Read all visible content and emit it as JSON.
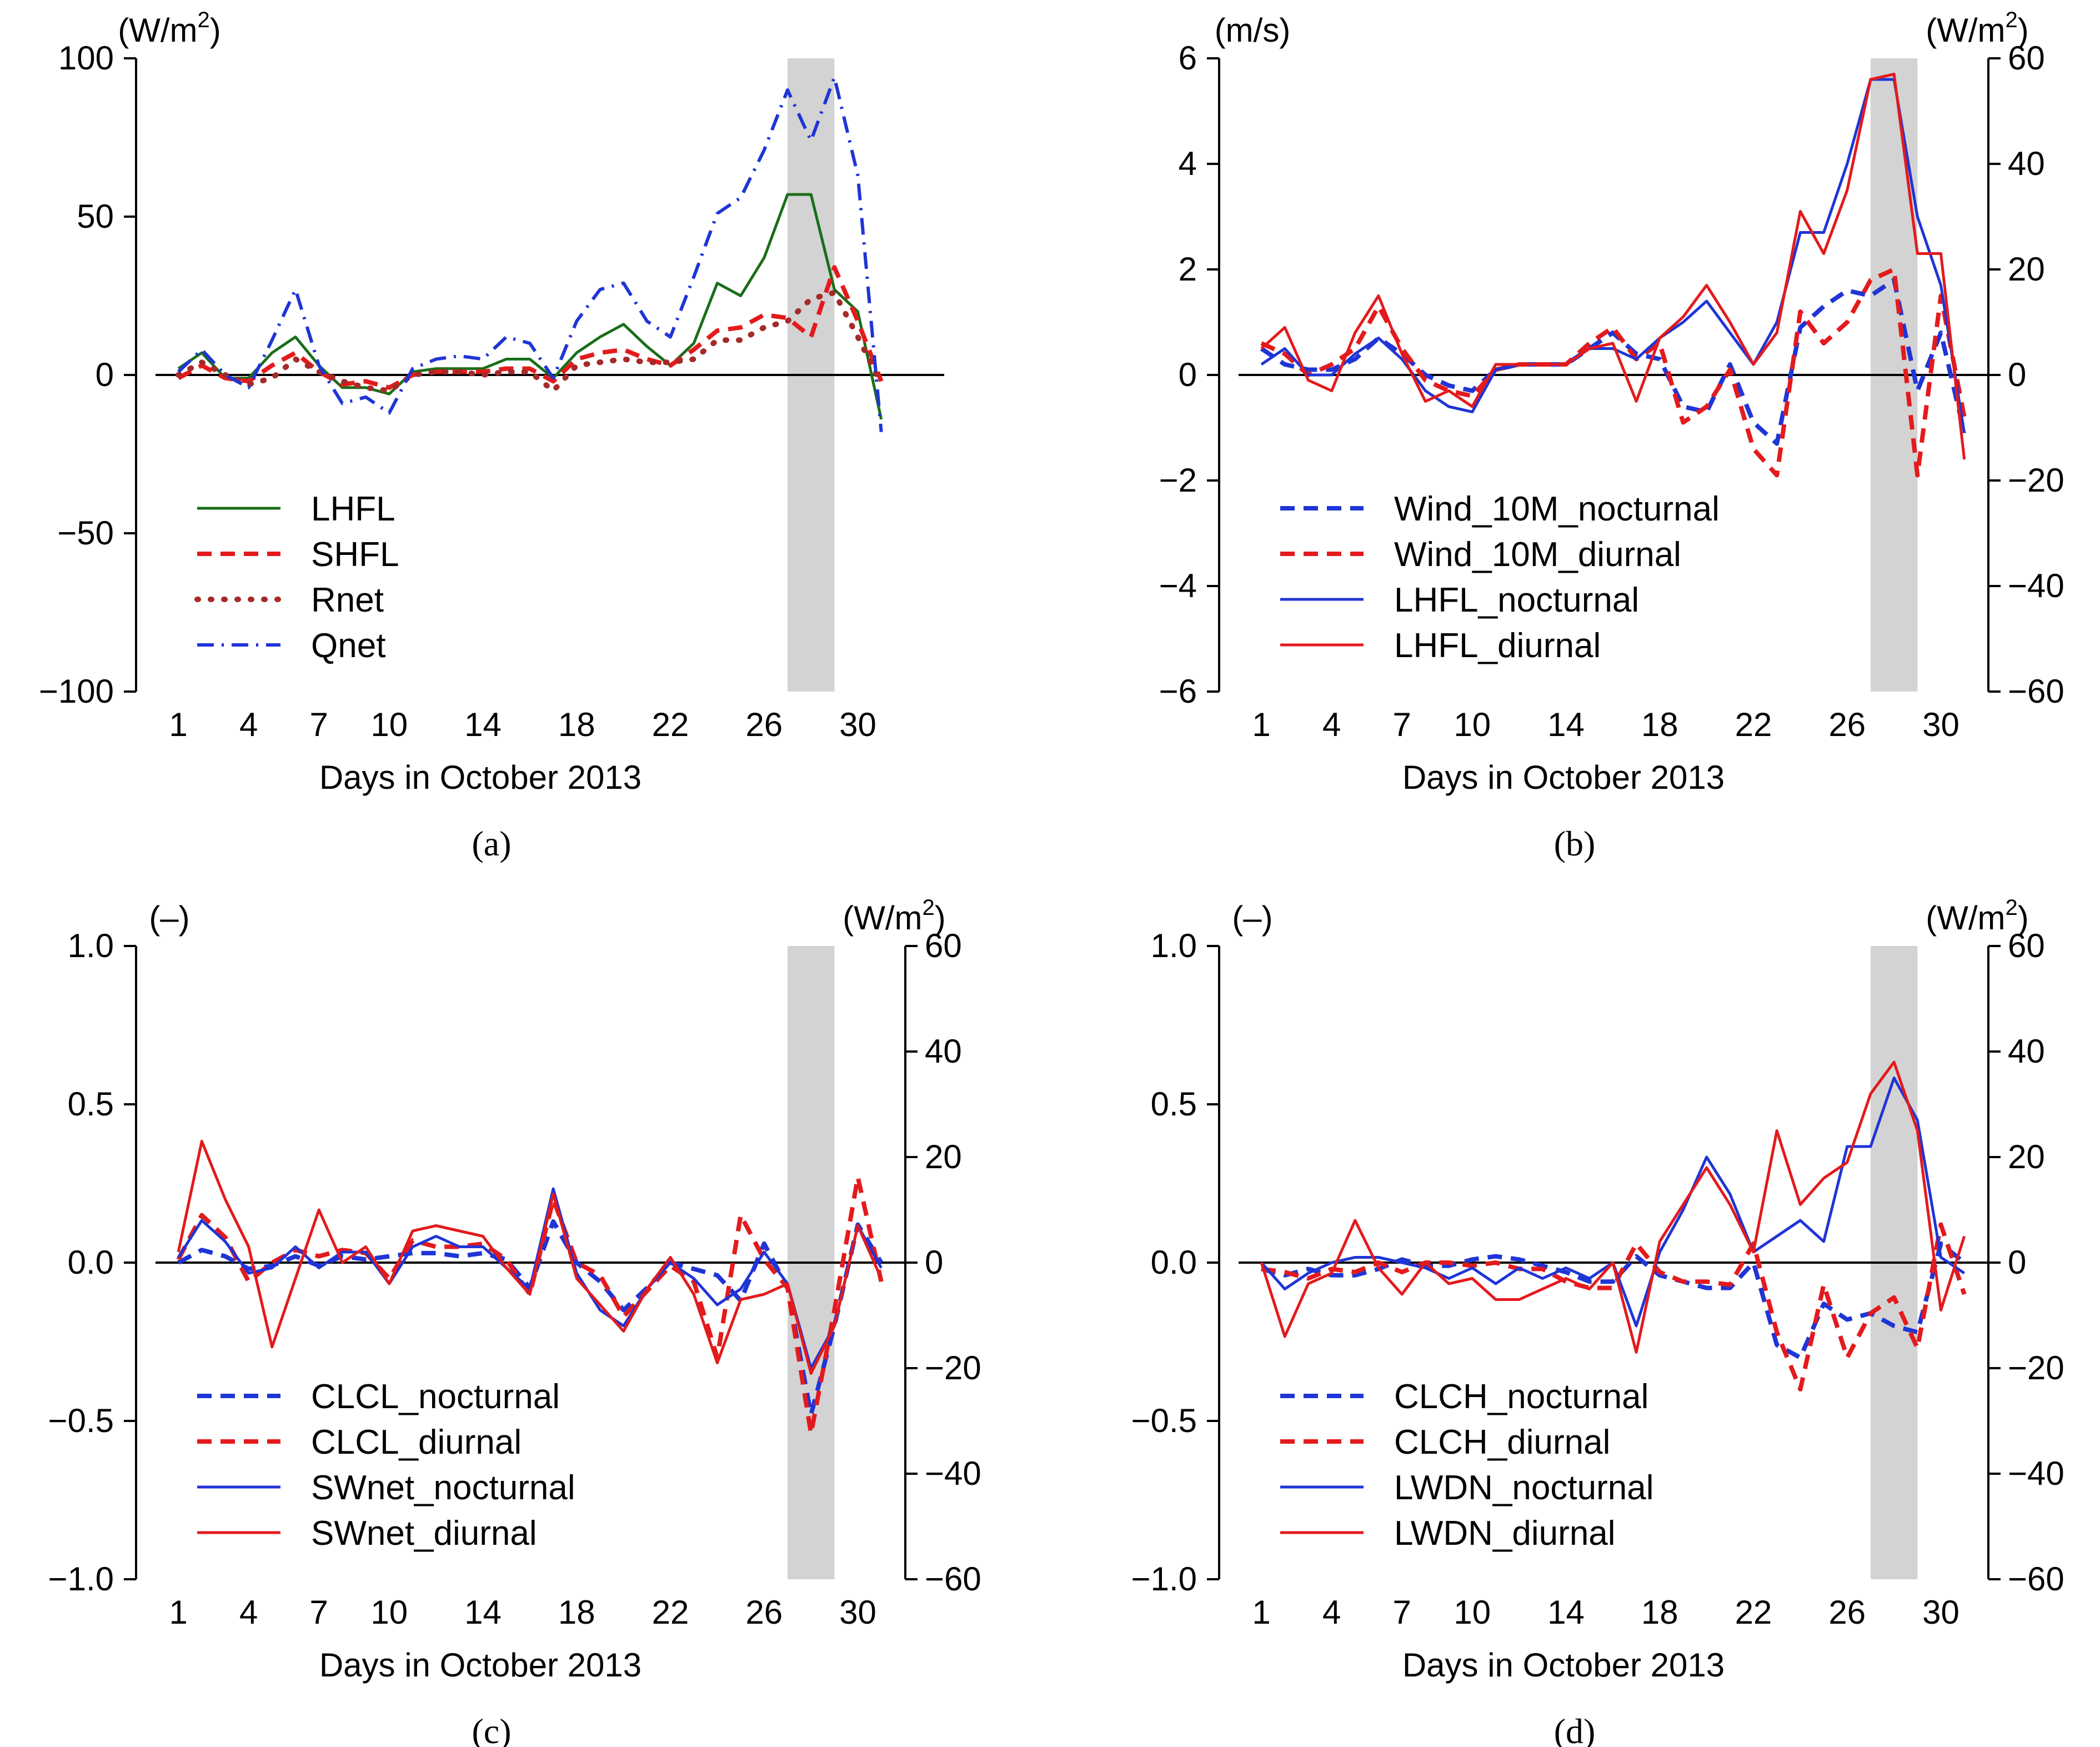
{
  "figure": {
    "xlabel": "Days in October 2013",
    "x_ticks": [
      1,
      4,
      7,
      10,
      14,
      18,
      22,
      26,
      30
    ],
    "shade_days": [
      27,
      29
    ]
  },
  "chart_data": [
    {
      "panel": "(a)",
      "type": "line",
      "title": "",
      "xlabel": "Days in October 2013",
      "xlim": [
        1,
        31
      ],
      "x": [
        1,
        2,
        3,
        4,
        5,
        6,
        7,
        8,
        9,
        10,
        11,
        12,
        13,
        14,
        15,
        16,
        17,
        18,
        19,
        20,
        21,
        22,
        23,
        24,
        25,
        26,
        27,
        28,
        29,
        30,
        31
      ],
      "ylabel": "(W/m2)",
      "ylim": [
        -100,
        100
      ],
      "y_ticks": [
        -100,
        -50,
        0,
        50,
        100
      ],
      "y_tick_labels": [
        "−100",
        "−50",
        "0",
        "50",
        "100"
      ],
      "series": [
        {
          "name": "LHFL",
          "axis": "left",
          "color": "#1a6e1a",
          "style": "solid",
          "values": [
            2,
            7,
            -1,
            -1,
            7,
            12,
            3,
            -4,
            -4,
            -6,
            1,
            2,
            2,
            2,
            5,
            5,
            -1,
            7,
            12,
            16,
            9,
            3,
            10,
            29,
            25,
            37,
            57,
            57,
            27,
            20,
            -14
          ]
        },
        {
          "name": "SHFL",
          "axis": "left",
          "color": "#e41a1c",
          "style": "dashed",
          "values": [
            -1,
            3,
            -1,
            -2,
            3,
            7,
            1,
            -3,
            -2,
            -4,
            0,
            1,
            1,
            1,
            2,
            2,
            -2,
            5,
            7,
            8,
            5,
            3,
            8,
            14,
            15,
            19,
            18,
            12,
            34,
            17,
            -2
          ]
        },
        {
          "name": "Rnet",
          "axis": "left",
          "color": "#a52a2a",
          "style": "dotted",
          "values": [
            0,
            4,
            0,
            -3,
            -1,
            5,
            1,
            -2,
            -4,
            -5,
            0,
            1,
            1,
            0,
            1,
            1,
            -5,
            3,
            4,
            5,
            4,
            4,
            5,
            11,
            11,
            15,
            17,
            24,
            26,
            12,
            -3
          ]
        },
        {
          "name": "Qnet",
          "axis": "left",
          "color": "#1f35d6",
          "style": "dashdot",
          "values": [
            1,
            8,
            0,
            -4,
            11,
            27,
            3,
            -9,
            -7,
            -12,
            2,
            5,
            6,
            5,
            12,
            10,
            -1,
            17,
            27,
            29,
            17,
            12,
            31,
            51,
            56,
            71,
            90,
            74,
            94,
            63,
            -18
          ]
        }
      ]
    },
    {
      "panel": "(b)",
      "type": "line",
      "title": "",
      "xlabel": "Days in October 2013",
      "xlim": [
        1,
        31
      ],
      "x": [
        1,
        2,
        3,
        4,
        5,
        6,
        7,
        8,
        9,
        10,
        11,
        12,
        13,
        14,
        15,
        16,
        17,
        18,
        19,
        20,
        21,
        22,
        23,
        24,
        25,
        26,
        27,
        28,
        29,
        30,
        31
      ],
      "ylabel": "(m/s)",
      "ylim": [
        -6,
        6
      ],
      "y_ticks": [
        -6,
        -4,
        -2,
        0,
        2,
        4,
        6
      ],
      "y_tick_labels": [
        "−6",
        "−4",
        "−2",
        "0",
        "2",
        "4",
        "6"
      ],
      "y2label": "(W/m2)",
      "y2lim": [
        -60,
        60
      ],
      "y2_ticks": [
        -60,
        -40,
        -20,
        0,
        20,
        40,
        60
      ],
      "y2_tick_labels": [
        "−60",
        "−40",
        "−20",
        "0",
        "20",
        "40",
        "60"
      ],
      "series": [
        {
          "name": "Wind_10M_nocturnal",
          "axis": "left",
          "color": "#1f35d6",
          "style": "dashed",
          "values": [
            0.5,
            0.2,
            0.1,
            0.1,
            0.3,
            0.7,
            0.4,
            0.0,
            -0.2,
            -0.3,
            0.1,
            0.2,
            0.2,
            0.2,
            0.5,
            0.8,
            0.4,
            0.3,
            -0.6,
            -0.7,
            0.2,
            -0.9,
            -1.3,
            0.9,
            1.3,
            1.6,
            1.5,
            1.8,
            -0.3,
            0.8,
            -1.1
          ]
        },
        {
          "name": "Wind_10M_diurnal",
          "axis": "left",
          "color": "#e41a1c",
          "style": "dashed",
          "values": [
            0.6,
            0.4,
            0.0,
            0.2,
            0.5,
            1.3,
            0.5,
            -0.1,
            -0.3,
            -0.4,
            0.1,
            0.2,
            0.2,
            0.2,
            0.6,
            0.9,
            0.3,
            0.6,
            -0.9,
            -0.6,
            0.1,
            -1.4,
            -1.9,
            1.2,
            0.6,
            1.0,
            1.8,
            2.0,
            -1.9,
            1.5,
            -0.8
          ]
        },
        {
          "name": "LHFL_nocturnal",
          "axis": "right",
          "color": "#1f35d6",
          "style": "solid",
          "values": [
            2,
            5,
            0,
            0,
            4,
            7,
            3,
            -3,
            -6,
            -7,
            1,
            2,
            2,
            2,
            5,
            5,
            3,
            7,
            10,
            14,
            8,
            2,
            10,
            27,
            27,
            40,
            56,
            56,
            30,
            17,
            -11
          ]
        },
        {
          "name": "LHFL_diurnal",
          "axis": "right",
          "color": "#e41a1c",
          "style": "solid",
          "values": [
            5,
            9,
            -1,
            -3,
            8,
            15,
            4,
            -5,
            -3,
            -6,
            2,
            2,
            2,
            2,
            5,
            6,
            -5,
            7,
            11,
            17,
            10,
            2,
            8,
            31,
            23,
            35,
            56,
            57,
            23,
            23,
            -16
          ]
        }
      ]
    },
    {
      "panel": "(c)",
      "type": "line",
      "title": "",
      "xlabel": "Days in October 2013",
      "xlim": [
        1,
        31
      ],
      "x": [
        1,
        2,
        3,
        4,
        5,
        6,
        7,
        8,
        9,
        10,
        11,
        12,
        13,
        14,
        15,
        16,
        17,
        18,
        19,
        20,
        21,
        22,
        23,
        24,
        25,
        26,
        27,
        28,
        29,
        30,
        31
      ],
      "ylabel": "(–)",
      "ylim": [
        -1.0,
        1.0
      ],
      "y_ticks": [
        -1.0,
        -0.5,
        0.0,
        0.5,
        1.0
      ],
      "y_tick_labels": [
        "−1.0",
        "−0.5",
        "0.0",
        "0.5",
        "1.0"
      ],
      "y2label": "(W/m2)",
      "y2lim": [
        -60,
        60
      ],
      "y2_ticks": [
        -60,
        -40,
        -20,
        0,
        20,
        40,
        60
      ],
      "y2_tick_labels": [
        "−60",
        "−40",
        "−20",
        "0",
        "20",
        "40",
        "60"
      ],
      "series": [
        {
          "name": "CLCL_nocturnal",
          "axis": "left",
          "color": "#1f35d6",
          "style": "dashed",
          "values": [
            0.0,
            0.04,
            0.02,
            -0.02,
            -0.01,
            0.02,
            -0.01,
            0.02,
            0.01,
            0.02,
            0.03,
            0.03,
            0.02,
            0.03,
            0.01,
            -0.08,
            0.13,
            0.0,
            -0.06,
            -0.15,
            -0.08,
            0.0,
            -0.02,
            -0.04,
            -0.12,
            0.06,
            -0.08,
            -0.48,
            -0.2,
            0.12,
            0.0
          ]
        },
        {
          "name": "CLCL_diurnal",
          "axis": "left",
          "color": "#e41a1c",
          "style": "dashed",
          "values": [
            0.01,
            0.15,
            0.08,
            -0.06,
            0.0,
            0.04,
            0.02,
            0.04,
            0.03,
            -0.05,
            0.07,
            0.05,
            0.05,
            0.06,
            0.01,
            -0.1,
            0.2,
            0.0,
            -0.04,
            -0.17,
            -0.09,
            -0.01,
            -0.06,
            -0.3,
            0.15,
            0.01,
            -0.08,
            -0.54,
            -0.15,
            0.27,
            -0.06
          ]
        },
        {
          "name": "SWnet_nocturnal",
          "axis": "right",
          "color": "#1f35d6",
          "style": "solid",
          "values": [
            1,
            8,
            4,
            -2,
            -1,
            3,
            -1,
            2,
            2,
            -4,
            3,
            5,
            3,
            3,
            -1,
            -5,
            14,
            -2,
            -9,
            -12,
            -5,
            0,
            -3,
            -8,
            -5,
            2,
            -4,
            -20,
            -12,
            7,
            -1
          ]
        },
        {
          "name": "SWnet_diurnal",
          "axis": "right",
          "color": "#e41a1c",
          "style": "solid",
          "values": [
            2,
            23,
            12,
            3,
            -16,
            -3,
            10,
            0,
            3,
            -4,
            6,
            7,
            6,
            5,
            -1,
            -6,
            13,
            -3,
            -8,
            -13,
            -5,
            1,
            -6,
            -19,
            -7,
            -6,
            -4,
            -21,
            -12,
            7,
            -3
          ]
        }
      ]
    },
    {
      "panel": "(d)",
      "type": "line",
      "title": "",
      "xlabel": "Days in October 2013",
      "xlim": [
        1,
        31
      ],
      "x": [
        1,
        2,
        3,
        4,
        5,
        6,
        7,
        8,
        9,
        10,
        11,
        12,
        13,
        14,
        15,
        16,
        17,
        18,
        19,
        20,
        21,
        22,
        23,
        24,
        25,
        26,
        27,
        28,
        29,
        30,
        31
      ],
      "ylabel": "(–)",
      "ylim": [
        -1.0,
        1.0
      ],
      "y_ticks": [
        -1.0,
        -0.5,
        0.0,
        0.5,
        1.0
      ],
      "y_tick_labels": [
        "−1.0",
        "−0.5",
        "0.0",
        "0.5",
        "1.0"
      ],
      "y2label": "(W/m2)",
      "y2lim": [
        -60,
        60
      ],
      "y2_ticks": [
        -60,
        -40,
        -20,
        0,
        20,
        40,
        60
      ],
      "y2_tick_labels": [
        "−60",
        "−40",
        "−20",
        "0",
        "20",
        "40",
        "60"
      ],
      "series": [
        {
          "name": "CLCH_nocturnal",
          "axis": "left",
          "color": "#1f35d6",
          "style": "dashed",
          "values": [
            -0.02,
            -0.04,
            -0.02,
            -0.04,
            -0.04,
            -0.02,
            0.01,
            -0.01,
            -0.01,
            0.01,
            0.02,
            0.01,
            -0.01,
            -0.03,
            -0.06,
            -0.06,
            0.02,
            -0.04,
            -0.06,
            -0.08,
            -0.08,
            0.0,
            -0.26,
            -0.3,
            -0.13,
            -0.18,
            -0.16,
            -0.2,
            -0.22,
            0.06,
            0.0
          ]
        },
        {
          "name": "CLCH_diurnal",
          "axis": "left",
          "color": "#e41a1c",
          "style": "dashed",
          "values": [
            -0.02,
            -0.03,
            -0.05,
            -0.02,
            -0.03,
            0.0,
            -0.03,
            0.0,
            0.0,
            -0.01,
            0.0,
            -0.02,
            -0.02,
            -0.06,
            -0.08,
            -0.08,
            0.06,
            -0.03,
            -0.06,
            -0.06,
            -0.07,
            0.06,
            -0.22,
            -0.4,
            -0.07,
            -0.3,
            -0.16,
            -0.11,
            -0.27,
            0.12,
            -0.1
          ]
        },
        {
          "name": "LWDN_nocturnal",
          "axis": "right",
          "color": "#1f35d6",
          "style": "solid",
          "values": [
            0,
            -5,
            -2,
            0,
            1,
            1,
            0,
            -1,
            -3,
            -1,
            -4,
            -1,
            -3,
            -1,
            -3,
            0,
            -12,
            2,
            10,
            20,
            13,
            2,
            5,
            8,
            4,
            22,
            22,
            35,
            27,
            1,
            -2
          ]
        },
        {
          "name": "LWDN_diurnal",
          "axis": "right",
          "color": "#e41a1c",
          "style": "solid",
          "values": [
            0,
            -14,
            -4,
            -2,
            8,
            -1,
            -6,
            0,
            -4,
            -3,
            -7,
            -7,
            -5,
            -3,
            -5,
            0,
            -17,
            4,
            11,
            18,
            11,
            2,
            25,
            11,
            16,
            19,
            32,
            38,
            25,
            -9,
            5
          ]
        }
      ]
    }
  ]
}
